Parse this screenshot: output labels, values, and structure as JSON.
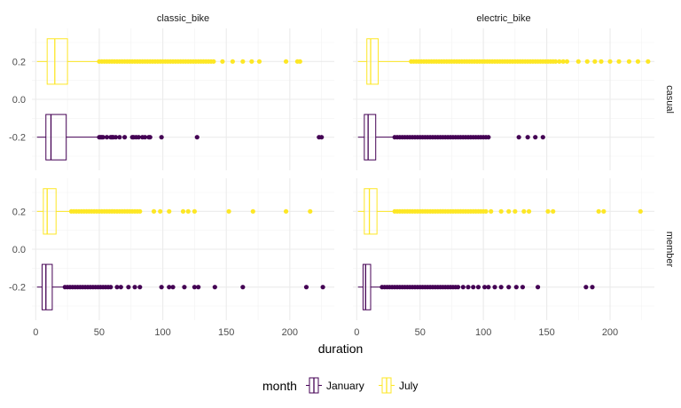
{
  "chart_data": {
    "type": "boxplot",
    "xlabel": "duration",
    "ylabel": "",
    "xlim": [
      -3,
      235
    ],
    "ylim": [
      -0.375,
      0.375
    ],
    "x_ticks": [
      0,
      50,
      100,
      150,
      200
    ],
    "y_ticks": [
      -0.2,
      0.0,
      0.2
    ],
    "y_tick_labels": [
      "-0.2",
      "0.0",
      "0.2"
    ],
    "facet_columns": [
      "classic_bike",
      "electric_bike"
    ],
    "facet_rows": [
      "casual",
      "member"
    ],
    "legend": {
      "title": "month",
      "position": "bottom",
      "entries": [
        {
          "label": "January",
          "color": "#440154"
        },
        {
          "label": "July",
          "color": "#FDE725"
        }
      ]
    },
    "grid": true,
    "panels": [
      {
        "column": "classic_bike",
        "row": "casual",
        "boxes": [
          {
            "series": "July",
            "y": 0.2,
            "min": 1,
            "q1": 9,
            "median": 15,
            "q3": 25,
            "max": 50,
            "outliers": [
              50,
              52,
              54,
              56,
              58,
              60,
              62,
              64,
              66,
              68,
              70,
              72,
              74,
              76,
              78,
              80,
              82,
              84,
              86,
              88,
              90,
              92,
              94,
              96,
              98,
              100,
              102,
              104,
              106,
              108,
              110,
              112,
              114,
              116,
              118,
              120,
              122,
              124,
              126,
              128,
              130,
              132,
              134,
              136,
              138,
              140,
              147,
              155,
              163,
              170,
              176,
              197,
              206,
              208
            ]
          },
          {
            "series": "January",
            "y": -0.2,
            "min": 1,
            "q1": 8,
            "median": 12,
            "q3": 24,
            "max": 50,
            "outliers": [
              50,
              51,
              52,
              53,
              56,
              59,
              60,
              61,
              63,
              66,
              70,
              76,
              77,
              79,
              81,
              84,
              86,
              89,
              90,
              99,
              127,
              223,
              225
            ]
          }
        ]
      },
      {
        "column": "electric_bike",
        "row": "casual",
        "boxes": [
          {
            "series": "July",
            "y": 0.2,
            "min": 1,
            "q1": 8,
            "median": 11,
            "q3": 17,
            "max": 43,
            "outliers": [
              43,
              45,
              47,
              49,
              51,
              53,
              55,
              57,
              59,
              61,
              63,
              65,
              67,
              69,
              71,
              73,
              75,
              77,
              79,
              81,
              83,
              85,
              87,
              89,
              91,
              93,
              95,
              97,
              99,
              101,
              103,
              105,
              107,
              109,
              111,
              113,
              115,
              117,
              119,
              121,
              123,
              125,
              127,
              129,
              131,
              133,
              135,
              137,
              139,
              141,
              143,
              145,
              147,
              149,
              151,
              153,
              155,
              157,
              160,
              163,
              166,
              175,
              182,
              188,
              193,
              200,
              207,
              215,
              222,
              230
            ]
          },
          {
            "series": "January",
            "y": -0.2,
            "min": 1,
            "q1": 6,
            "median": 9,
            "q3": 15,
            "max": 30,
            "outliers": [
              30,
              32,
              34,
              36,
              38,
              40,
              42,
              44,
              46,
              48,
              50,
              52,
              54,
              56,
              58,
              60,
              62,
              64,
              66,
              68,
              70,
              72,
              74,
              76,
              78,
              80,
              82,
              84,
              86,
              88,
              90,
              92,
              94,
              96,
              98,
              100,
              102,
              104,
              128,
              135,
              141,
              147
            ]
          }
        ]
      },
      {
        "column": "classic_bike",
        "row": "member",
        "boxes": [
          {
            "series": "July",
            "y": 0.2,
            "min": 1,
            "q1": 6,
            "median": 9,
            "q3": 16,
            "max": 28,
            "outliers": [
              28,
              30,
              32,
              34,
              36,
              38,
              40,
              42,
              44,
              46,
              48,
              50,
              52,
              54,
              56,
              58,
              60,
              62,
              64,
              66,
              68,
              70,
              72,
              74,
              76,
              78,
              80,
              82,
              93,
              98,
              105,
              116,
              120,
              125,
              152,
              171,
              197,
              216
            ]
          },
          {
            "series": "January",
            "y": -0.2,
            "min": 1,
            "q1": 5,
            "median": 8,
            "q3": 13,
            "max": 23,
            "outliers": [
              23,
              25,
              27,
              29,
              31,
              33,
              35,
              37,
              39,
              41,
              43,
              45,
              47,
              49,
              51,
              53,
              55,
              57,
              59,
              64,
              67,
              73,
              78,
              82,
              99,
              105,
              108,
              117,
              125,
              128,
              141,
              163,
              213,
              226
            ]
          }
        ]
      },
      {
        "column": "electric_bike",
        "row": "member",
        "boxes": [
          {
            "series": "July",
            "y": 0.2,
            "min": 1,
            "q1": 6,
            "median": 10,
            "q3": 16,
            "max": 30,
            "outliers": [
              30,
              32,
              34,
              36,
              38,
              40,
              42,
              44,
              46,
              48,
              50,
              52,
              54,
              56,
              58,
              60,
              62,
              64,
              66,
              68,
              70,
              72,
              74,
              76,
              78,
              80,
              82,
              84,
              86,
              88,
              90,
              92,
              94,
              96,
              98,
              100,
              102,
              106,
              114,
              120,
              125,
              132,
              136,
              151,
              155,
              191,
              195,
              224
            ]
          },
          {
            "series": "January",
            "y": -0.2,
            "min": 1,
            "q1": 5,
            "median": 7,
            "q3": 11,
            "max": 20,
            "outliers": [
              20,
              22,
              24,
              26,
              28,
              30,
              32,
              34,
              36,
              38,
              40,
              42,
              44,
              46,
              48,
              50,
              52,
              54,
              56,
              58,
              60,
              62,
              64,
              66,
              68,
              70,
              72,
              74,
              76,
              78,
              80,
              84,
              88,
              92,
              96,
              101,
              104,
              109,
              114,
              120,
              126,
              131,
              143,
              181,
              186
            ]
          }
        ]
      }
    ]
  }
}
